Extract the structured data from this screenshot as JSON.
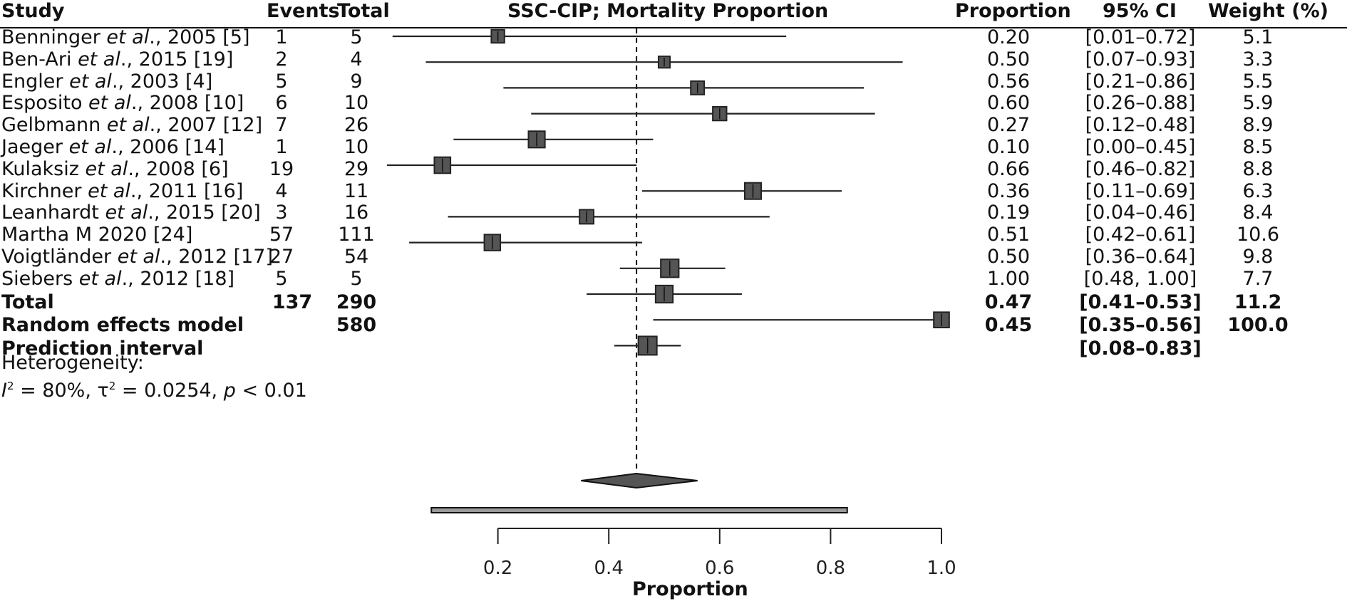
{
  "chart_data": {
    "type": "forest",
    "title": "SSC-CIP; Mortality Proportion",
    "xlabel": "Proportion",
    "xlim": [
      0.0,
      1.0
    ],
    "xticks": [
      0.2,
      0.4,
      0.6,
      0.8,
      1.0
    ],
    "xtick_labels": [
      "0.2",
      "0.4",
      "0.6",
      "0.8",
      "1.0"
    ],
    "reference_line": 0.45,
    "columns": {
      "study": "Study",
      "events": "Events",
      "total": "Total",
      "proportion": "Proportion",
      "ci": "95% CI",
      "weight": "Weight (%)"
    },
    "studies": [
      {
        "pre": "Benninger ",
        "italic": "et al",
        "post": "., 2005 [5]",
        "events": "1",
        "total": "5",
        "proportion": "0.20",
        "ci": "[0.01–0.72]",
        "weight": "5.1",
        "est": 0.2,
        "lo": 0.01,
        "hi": 0.72
      },
      {
        "pre": "Ben-Ari ",
        "italic": "et al",
        "post": "., 2015 [19]",
        "events": "2",
        "total": "4",
        "proportion": "0.50",
        "ci": "[0.07–0.93]",
        "weight": "3.3",
        "est": 0.5,
        "lo": 0.07,
        "hi": 0.93
      },
      {
        "pre": "Engler ",
        "italic": "et al",
        "post": "., 2003 [4]",
        "events": "5",
        "total": "9",
        "proportion": "0.56",
        "ci": "[0.21–0.86]",
        "weight": "5.5",
        "est": 0.56,
        "lo": 0.21,
        "hi": 0.86
      },
      {
        "pre": "Esposito ",
        "italic": "et al",
        "post": "., 2008 [10]",
        "events": "6",
        "total": "10",
        "proportion": "0.60",
        "ci": "[0.26–0.88]",
        "weight": "5.9",
        "est": 0.6,
        "lo": 0.26,
        "hi": 0.88
      },
      {
        "pre": "Gelbmann ",
        "italic": "et al",
        "post": "., 2007 [12]",
        "events": "7",
        "total": "26",
        "proportion": "0.27",
        "ci": "[0.12–0.48]",
        "weight": "8.9",
        "est": 0.27,
        "lo": 0.12,
        "hi": 0.48
      },
      {
        "pre": "Jaeger ",
        "italic": "et al",
        "post": "., 2006 [14]",
        "events": "1",
        "total": "10",
        "proportion": "0.10",
        "ci": "[0.00–0.45]",
        "weight": "8.5",
        "est": 0.1,
        "lo": 0.0,
        "hi": 0.45
      },
      {
        "pre": "Kulaksiz ",
        "italic": "et al",
        "post": "., 2008 [6]",
        "events": "19",
        "total": "29",
        "proportion": "0.66",
        "ci": "[0.46–0.82]",
        "weight": "8.8",
        "est": 0.66,
        "lo": 0.46,
        "hi": 0.82
      },
      {
        "pre": "Kirchner ",
        "italic": "et al",
        "post": "., 2011 [16]",
        "events": "4",
        "total": "11",
        "proportion": "0.36",
        "ci": "[0.11–0.69]",
        "weight": "6.3",
        "est": 0.36,
        "lo": 0.11,
        "hi": 0.69
      },
      {
        "pre": "Leanhardt ",
        "italic": "et al",
        "post": "., 2015 [20]",
        "events": "3",
        "total": "16",
        "proportion": "0.19",
        "ci": "[0.04–0.46]",
        "weight": "8.4",
        "est": 0.19,
        "lo": 0.04,
        "hi": 0.46
      },
      {
        "pre": "Martha M 2020 [24]",
        "italic": "",
        "post": "",
        "events": "57",
        "total": "111",
        "proportion": "0.51",
        "ci": "[0.42–0.61]",
        "weight": "10.6",
        "est": 0.51,
        "lo": 0.42,
        "hi": 0.61
      },
      {
        "pre": "Voigtländer ",
        "italic": "et al",
        "post": "., 2012 [17]",
        "events": "27",
        "total": "54",
        "proportion": "0.50",
        "ci": "[0.36–0.64]",
        "weight": "9.8",
        "est": 0.5,
        "lo": 0.36,
        "hi": 0.64
      },
      {
        "pre": "Siebers ",
        "italic": "et al",
        "post": "., 2012 [18]",
        "events": "5",
        "total": "5",
        "proportion": "1.00",
        "ci": "[0.48, 1.00]",
        "weight": "7.7",
        "est": 1.0,
        "lo": 0.48,
        "hi": 1.0
      }
    ],
    "total": {
      "label": "Total",
      "events": "137",
      "total": "290",
      "proportion": "0.47",
      "ci": "[0.41–0.53]",
      "weight": "11.2",
      "est": 0.47,
      "lo": 0.41,
      "hi": 0.53
    },
    "random_effects": {
      "label": "Random effects model",
      "total": "580",
      "proportion": "0.45",
      "ci": "[0.35–0.56]",
      "weight": "100.0",
      "est": 0.45,
      "lo": 0.35,
      "hi": 0.56
    },
    "prediction_interval": {
      "label": "Prediction interval",
      "ci": "[0.08–0.83]",
      "lo": 0.08,
      "hi": 0.83
    },
    "heterogeneity": {
      "label": "Heterogeneity:",
      "i2_sym": "I",
      "i2_text": " = 80%, ",
      "tau_sym": "τ",
      "tau_text": " = 0.0254, ",
      "p_sym": "p",
      "p_text": " < 0.01"
    }
  }
}
